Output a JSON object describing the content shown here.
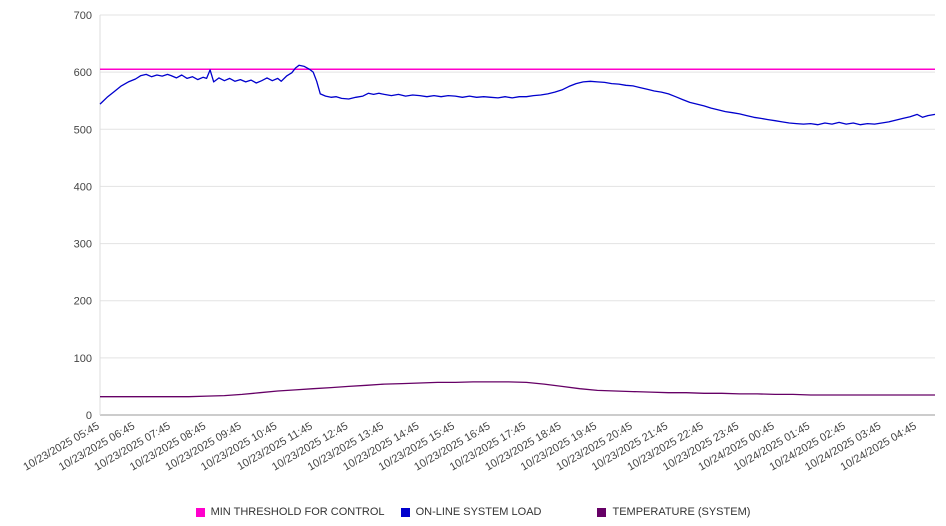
{
  "chart_data": {
    "type": "line",
    "title": "",
    "xlabel": "",
    "ylabel": "",
    "ylim": [
      0,
      700
    ],
    "y_ticks": [
      0,
      100,
      200,
      300,
      400,
      500,
      600,
      700
    ],
    "grid": true,
    "legend_position": "bottom",
    "x_index_range": [
      0,
      23.5
    ],
    "x_tick_labels": [
      "10/23/2025 05:45",
      "10/23/2025 06:45",
      "10/23/2025 07:45",
      "10/23/2025 08:45",
      "10/23/2025 09:45",
      "10/23/2025 10:45",
      "10/23/2025 11:45",
      "10/23/2025 12:45",
      "10/23/2025 13:45",
      "10/23/2025 14:45",
      "10/23/2025 15:45",
      "10/23/2025 16:45",
      "10/23/2025 17:45",
      "10/23/2025 18:45",
      "10/23/2025 19:45",
      "10/23/2025 20:45",
      "10/23/2025 21:45",
      "10/23/2025 22:45",
      "10/23/2025 23:45",
      "10/24/2025 00:45",
      "10/24/2025 01:45",
      "10/24/2025 02:45",
      "10/24/2025 03:45",
      "10/24/2025 04:45"
    ],
    "series": [
      {
        "name": "MIN THRESHOLD FOR CONTROL",
        "color": "#ff00cc",
        "type": "constant",
        "value": 605
      },
      {
        "name": "ON-LINE SYSTEM LOAD",
        "color": "#0000cd",
        "type": "line",
        "points": [
          [
            0,
            544
          ],
          [
            0.2,
            556
          ],
          [
            0.4,
            566
          ],
          [
            0.6,
            576
          ],
          [
            0.8,
            583
          ],
          [
            1,
            588
          ],
          [
            1.15,
            594
          ],
          [
            1.3,
            596
          ],
          [
            1.45,
            592
          ],
          [
            1.6,
            595
          ],
          [
            1.75,
            593
          ],
          [
            1.9,
            596
          ],
          [
            2,
            594
          ],
          [
            2.15,
            590
          ],
          [
            2.3,
            595
          ],
          [
            2.45,
            589
          ],
          [
            2.6,
            592
          ],
          [
            2.75,
            587
          ],
          [
            2.9,
            591
          ],
          [
            3,
            589
          ],
          [
            3.1,
            604
          ],
          [
            3.2,
            583
          ],
          [
            3.35,
            590
          ],
          [
            3.5,
            585
          ],
          [
            3.65,
            589
          ],
          [
            3.8,
            584
          ],
          [
            3.95,
            587
          ],
          [
            4.1,
            583
          ],
          [
            4.25,
            586
          ],
          [
            4.4,
            581
          ],
          [
            4.55,
            585
          ],
          [
            4.7,
            590
          ],
          [
            4.85,
            585
          ],
          [
            5,
            589
          ],
          [
            5.1,
            584
          ],
          [
            5.25,
            593
          ],
          [
            5.4,
            599
          ],
          [
            5.5,
            607
          ],
          [
            5.6,
            612
          ],
          [
            5.75,
            610
          ],
          [
            5.9,
            605
          ],
          [
            6,
            600
          ],
          [
            6.1,
            584
          ],
          [
            6.2,
            562
          ],
          [
            6.35,
            558
          ],
          [
            6.5,
            556
          ],
          [
            6.65,
            557
          ],
          [
            6.8,
            554
          ],
          [
            7,
            553
          ],
          [
            7.2,
            556
          ],
          [
            7.4,
            558
          ],
          [
            7.55,
            563
          ],
          [
            7.7,
            561
          ],
          [
            7.85,
            563
          ],
          [
            8,
            561
          ],
          [
            8.2,
            559
          ],
          [
            8.4,
            561
          ],
          [
            8.6,
            558
          ],
          [
            8.8,
            560
          ],
          [
            9,
            559
          ],
          [
            9.2,
            557
          ],
          [
            9.4,
            559
          ],
          [
            9.6,
            557
          ],
          [
            9.8,
            559
          ],
          [
            10,
            558
          ],
          [
            10.2,
            556
          ],
          [
            10.4,
            558
          ],
          [
            10.6,
            556
          ],
          [
            10.8,
            557
          ],
          [
            11,
            556
          ],
          [
            11.2,
            555
          ],
          [
            11.4,
            557
          ],
          [
            11.6,
            555
          ],
          [
            11.8,
            557
          ],
          [
            12,
            557
          ],
          [
            12.2,
            559
          ],
          [
            12.4,
            560
          ],
          [
            12.6,
            562
          ],
          [
            12.8,
            565
          ],
          [
            13,
            569
          ],
          [
            13.2,
            575
          ],
          [
            13.4,
            580
          ],
          [
            13.6,
            583
          ],
          [
            13.8,
            584
          ],
          [
            14,
            583
          ],
          [
            14.2,
            582
          ],
          [
            14.4,
            580
          ],
          [
            14.6,
            579
          ],
          [
            14.8,
            577
          ],
          [
            15,
            576
          ],
          [
            15.2,
            573
          ],
          [
            15.4,
            570
          ],
          [
            15.6,
            567
          ],
          [
            15.8,
            565
          ],
          [
            16,
            562
          ],
          [
            16.2,
            557
          ],
          [
            16.4,
            552
          ],
          [
            16.6,
            547
          ],
          [
            16.8,
            544
          ],
          [
            17,
            541
          ],
          [
            17.2,
            537
          ],
          [
            17.4,
            534
          ],
          [
            17.6,
            531
          ],
          [
            17.8,
            529
          ],
          [
            18,
            527
          ],
          [
            18.2,
            524
          ],
          [
            18.4,
            521
          ],
          [
            18.6,
            519
          ],
          [
            18.8,
            517
          ],
          [
            19,
            515
          ],
          [
            19.2,
            513
          ],
          [
            19.4,
            511
          ],
          [
            19.6,
            510
          ],
          [
            19.8,
            509
          ],
          [
            20,
            510
          ],
          [
            20.2,
            508
          ],
          [
            20.4,
            511
          ],
          [
            20.6,
            509
          ],
          [
            20.8,
            512
          ],
          [
            21,
            509
          ],
          [
            21.2,
            511
          ],
          [
            21.4,
            508
          ],
          [
            21.6,
            510
          ],
          [
            21.8,
            509
          ],
          [
            22,
            511
          ],
          [
            22.2,
            513
          ],
          [
            22.4,
            516
          ],
          [
            22.6,
            519
          ],
          [
            22.8,
            522
          ],
          [
            23,
            526
          ],
          [
            23.15,
            521
          ],
          [
            23.3,
            524
          ],
          [
            23.5,
            526
          ]
        ]
      },
      {
        "name": "TEMPERATURE (SYSTEM)",
        "color": "#660066",
        "type": "line",
        "points": [
          [
            0,
            32
          ],
          [
            0.5,
            32
          ],
          [
            1,
            32
          ],
          [
            1.5,
            32
          ],
          [
            2,
            32
          ],
          [
            2.5,
            32
          ],
          [
            3,
            33
          ],
          [
            3.5,
            34
          ],
          [
            4,
            36
          ],
          [
            4.5,
            39
          ],
          [
            5,
            42
          ],
          [
            5.5,
            44
          ],
          [
            6,
            46
          ],
          [
            6.5,
            48
          ],
          [
            7,
            50
          ],
          [
            7.5,
            52
          ],
          [
            8,
            54
          ],
          [
            8.5,
            55
          ],
          [
            9,
            56
          ],
          [
            9.5,
            57
          ],
          [
            10,
            57
          ],
          [
            10.5,
            58
          ],
          [
            11,
            58
          ],
          [
            11.5,
            58
          ],
          [
            12,
            57
          ],
          [
            12.5,
            54
          ],
          [
            13,
            50
          ],
          [
            13.5,
            46
          ],
          [
            14,
            43
          ],
          [
            14.5,
            42
          ],
          [
            15,
            41
          ],
          [
            15.5,
            40
          ],
          [
            16,
            39
          ],
          [
            16.5,
            39
          ],
          [
            17,
            38
          ],
          [
            17.5,
            38
          ],
          [
            18,
            37
          ],
          [
            18.5,
            37
          ],
          [
            19,
            36
          ],
          [
            19.5,
            36
          ],
          [
            20,
            35
          ],
          [
            20.5,
            35
          ],
          [
            21,
            35
          ],
          [
            21.5,
            35
          ],
          [
            22,
            35
          ],
          [
            22.5,
            35
          ],
          [
            23,
            35
          ],
          [
            23.5,
            35
          ]
        ]
      }
    ]
  }
}
